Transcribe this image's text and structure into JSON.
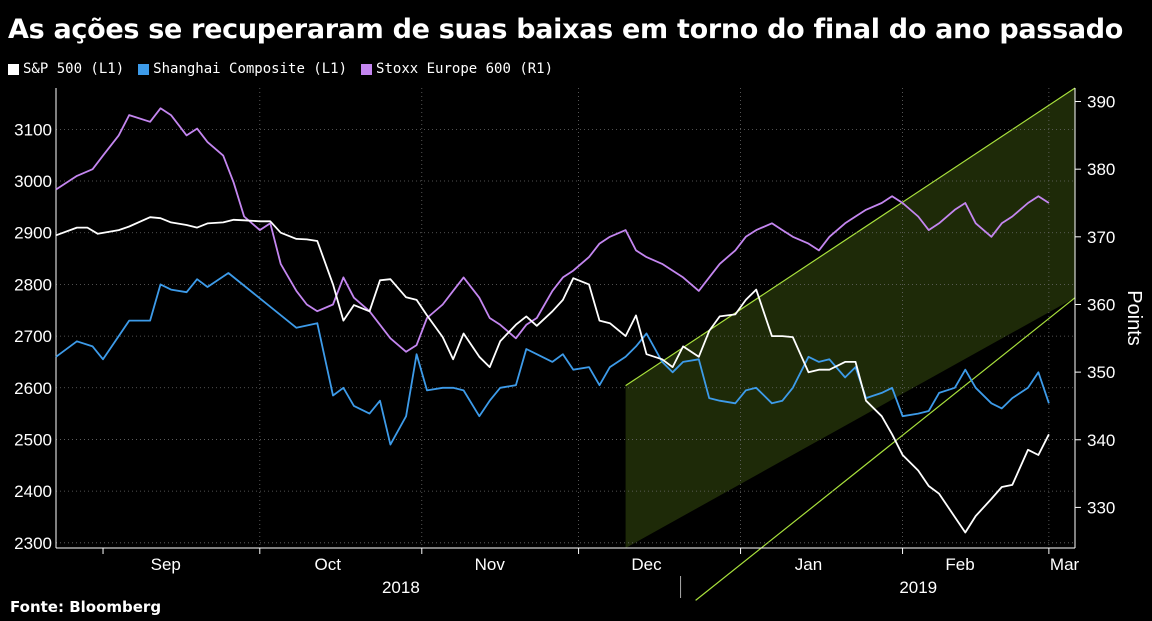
{
  "title": "As ações se recuperaram de suas baixas em torno do final do ano passado",
  "source_label": "Fonte:",
  "source_name": "Bloomberg",
  "colors": {
    "sp500": "#ffffff",
    "shanghai": "#3d9be9",
    "stoxx": "#c486f0",
    "channel_fill": "#1e2a08",
    "channel_line": "#a8e03c"
  },
  "legend": [
    {
      "label": "S&P 500 (L1)",
      "color": "#ffffff"
    },
    {
      "label": "Shanghai Composite (L1)",
      "color": "#3d9be9"
    },
    {
      "label": "Stoxx Europe 600 (R1)",
      "color": "#c486f0"
    }
  ],
  "chart_data": {
    "type": "line",
    "x_type": "date",
    "xlim": [
      "2018-08-23",
      "2019-03-06"
    ],
    "x_month_labels": [
      "Sep",
      "Oct",
      "Nov",
      "Dec",
      "Jan",
      "Feb",
      "Mar"
    ],
    "x_year_labels": [
      "2018",
      "2019"
    ],
    "y_left": {
      "ylim": [
        2290,
        3180
      ],
      "ticks": [
        2300,
        2400,
        2500,
        2600,
        2700,
        2800,
        2900,
        3000,
        3100
      ]
    },
    "y_right": {
      "ylim": [
        324,
        392
      ],
      "ticks": [
        330,
        340,
        350,
        360,
        370,
        380,
        390
      ],
      "label": "Points"
    },
    "trend_channel": {
      "x_start": "2018-12-10",
      "x_end": "2019-03-06",
      "upper": [
        348,
        392
      ],
      "lower": [
        308,
        361
      ],
      "axis": "right"
    },
    "series": [
      {
        "name": "S&P 500 (L1)",
        "axis": "left",
        "points": [
          [
            "2018-08-23",
            2895
          ],
          [
            "2018-08-27",
            2910
          ],
          [
            "2018-08-29",
            2910
          ],
          [
            "2018-08-31",
            2898
          ],
          [
            "2018-09-04",
            2905
          ],
          [
            "2018-09-06",
            2912
          ],
          [
            "2018-09-10",
            2930
          ],
          [
            "2018-09-12",
            2928
          ],
          [
            "2018-09-14",
            2920
          ],
          [
            "2018-09-17",
            2915
          ],
          [
            "2018-09-19",
            2910
          ],
          [
            "2018-09-21",
            2918
          ],
          [
            "2018-09-24",
            2920
          ],
          [
            "2018-09-26",
            2925
          ],
          [
            "2018-09-28",
            2924
          ],
          [
            "2018-10-01",
            2922
          ],
          [
            "2018-10-03",
            2922
          ],
          [
            "2018-10-05",
            2900
          ],
          [
            "2018-10-08",
            2888
          ],
          [
            "2018-10-10",
            2887
          ],
          [
            "2018-10-12",
            2884
          ],
          [
            "2018-10-15",
            2800
          ],
          [
            "2018-10-17",
            2730
          ],
          [
            "2018-10-19",
            2760
          ],
          [
            "2018-10-22",
            2748
          ],
          [
            "2018-10-24",
            2808
          ],
          [
            "2018-10-26",
            2810
          ],
          [
            "2018-10-29",
            2775
          ],
          [
            "2018-10-31",
            2770
          ],
          [
            "2018-11-02",
            2740
          ],
          [
            "2018-11-05",
            2698
          ],
          [
            "2018-11-07",
            2655
          ],
          [
            "2018-11-09",
            2705
          ],
          [
            "2018-11-12",
            2660
          ],
          [
            "2018-11-14",
            2640
          ],
          [
            "2018-11-16",
            2690
          ],
          [
            "2018-11-19",
            2722
          ],
          [
            "2018-11-21",
            2738
          ],
          [
            "2018-11-23",
            2720
          ],
          [
            "2018-11-26",
            2748
          ],
          [
            "2018-11-28",
            2770
          ],
          [
            "2018-11-30",
            2812
          ],
          [
            "2018-12-03",
            2800
          ],
          [
            "2018-12-05",
            2730
          ],
          [
            "2018-12-07",
            2725
          ],
          [
            "2018-12-10",
            2700
          ],
          [
            "2018-12-12",
            2740
          ],
          [
            "2018-12-14",
            2665
          ],
          [
            "2018-12-17",
            2655
          ],
          [
            "2018-12-19",
            2640
          ],
          [
            "2018-12-21",
            2680
          ],
          [
            "2018-12-24",
            2660
          ],
          [
            "2018-12-26",
            2710
          ],
          [
            "2018-12-28",
            2738
          ],
          [
            "2018-12-31",
            2742
          ],
          [
            "2019-01-02",
            2770
          ],
          [
            "2019-01-04",
            2790
          ],
          [
            "2019-01-07",
            2700
          ],
          [
            "2019-01-09",
            2700
          ],
          [
            "2019-01-11",
            2698
          ],
          [
            "2019-01-14",
            2630
          ],
          [
            "2019-01-16",
            2635
          ],
          [
            "2019-01-18",
            2635
          ],
          [
            "2019-01-21",
            2650
          ],
          [
            "2019-01-23",
            2650
          ],
          [
            "2019-01-25",
            2575
          ],
          [
            "2019-01-28",
            2545
          ],
          [
            "2019-01-30",
            2510
          ],
          [
            "2019-02-01",
            2470
          ],
          [
            "2019-02-04",
            2440
          ],
          [
            "2019-02-06",
            2410
          ],
          [
            "2019-02-08",
            2395
          ],
          [
            "2019-02-11",
            2350
          ],
          [
            "2019-02-13",
            2320
          ],
          [
            "2019-02-15",
            2352
          ],
          [
            "2019-02-18",
            2385
          ],
          [
            "2019-02-20",
            2408
          ],
          [
            "2019-02-22",
            2412
          ],
          [
            "2019-02-25",
            2480
          ],
          [
            "2019-02-27",
            2470
          ],
          [
            "2019-03-01",
            2510
          ]
        ]
      },
      {
        "name": "Shanghai Composite (L1)",
        "axis": "left",
        "points": [
          [
            "2018-08-23",
            2660
          ],
          [
            "2018-08-27",
            2690
          ],
          [
            "2018-08-30",
            2680
          ],
          [
            "2018-09-01",
            2655
          ],
          [
            "2018-09-04",
            2700
          ],
          [
            "2018-09-06",
            2730
          ],
          [
            "2018-09-10",
            2730
          ],
          [
            "2018-09-12",
            2800
          ],
          [
            "2018-09-14",
            2790
          ],
          [
            "2018-09-17",
            2785
          ],
          [
            "2018-09-19",
            2810
          ],
          [
            "2018-09-21",
            2795
          ],
          [
            "2018-09-25",
            2822
          ],
          [
            "2018-10-08",
            2716
          ],
          [
            "2018-10-12",
            2725
          ],
          [
            "2018-10-15",
            2585
          ],
          [
            "2018-10-17",
            2600
          ],
          [
            "2018-10-19",
            2565
          ],
          [
            "2018-10-22",
            2550
          ],
          [
            "2018-10-24",
            2575
          ],
          [
            "2018-10-26",
            2490
          ],
          [
            "2018-10-29",
            2545
          ],
          [
            "2018-10-31",
            2665
          ],
          [
            "2018-11-02",
            2595
          ],
          [
            "2018-11-05",
            2600
          ],
          [
            "2018-11-07",
            2600
          ],
          [
            "2018-11-09",
            2595
          ],
          [
            "2018-11-12",
            2545
          ],
          [
            "2018-11-14",
            2575
          ],
          [
            "2018-11-16",
            2600
          ],
          [
            "2018-11-19",
            2605
          ],
          [
            "2018-11-21",
            2675
          ],
          [
            "2018-11-23",
            2665
          ],
          [
            "2018-11-26",
            2650
          ],
          [
            "2018-11-28",
            2665
          ],
          [
            "2018-11-30",
            2635
          ],
          [
            "2018-12-03",
            2640
          ],
          [
            "2018-12-05",
            2605
          ],
          [
            "2018-12-07",
            2640
          ],
          [
            "2018-12-10",
            2660
          ],
          [
            "2018-12-12",
            2680
          ],
          [
            "2018-12-14",
            2705
          ],
          [
            "2018-12-17",
            2650
          ],
          [
            "2018-12-19",
            2630
          ],
          [
            "2018-12-21",
            2650
          ],
          [
            "2018-12-24",
            2655
          ],
          [
            "2018-12-26",
            2580
          ],
          [
            "2018-12-28",
            2575
          ],
          [
            "2018-12-31",
            2570
          ],
          [
            "2019-01-02",
            2595
          ],
          [
            "2019-01-04",
            2600
          ],
          [
            "2019-01-07",
            2570
          ],
          [
            "2019-01-09",
            2575
          ],
          [
            "2019-01-11",
            2600
          ],
          [
            "2019-01-14",
            2660
          ],
          [
            "2019-01-16",
            2650
          ],
          [
            "2019-01-18",
            2655
          ],
          [
            "2019-01-21",
            2620
          ],
          [
            "2019-01-23",
            2640
          ],
          [
            "2019-01-25",
            2580
          ],
          [
            "2019-01-28",
            2590
          ],
          [
            "2019-01-30",
            2600
          ],
          [
            "2019-02-01",
            2545
          ],
          [
            "2019-02-04",
            2550
          ],
          [
            "2019-02-06",
            2555
          ],
          [
            "2019-02-08",
            2590
          ],
          [
            "2019-02-11",
            2600
          ],
          [
            "2019-02-13",
            2635
          ],
          [
            "2019-02-15",
            2600
          ],
          [
            "2019-02-18",
            2570
          ],
          [
            "2019-02-20",
            2560
          ],
          [
            "2019-02-22",
            2580
          ],
          [
            "2019-02-25",
            2600
          ],
          [
            "2019-02-27",
            2630
          ],
          [
            "2019-03-01",
            2570
          ]
        ]
      },
      {
        "name": "Stoxx Europe 600 (R1)",
        "axis": "right",
        "points": [
          [
            "2018-08-23",
            377
          ],
          [
            "2018-08-27",
            379
          ],
          [
            "2018-08-30",
            380
          ],
          [
            "2018-09-01",
            382
          ],
          [
            "2018-09-04",
            385
          ],
          [
            "2018-09-06",
            388
          ],
          [
            "2018-09-10",
            387
          ],
          [
            "2018-09-12",
            389
          ],
          [
            "2018-09-14",
            388
          ],
          [
            "2018-09-17",
            385
          ],
          [
            "2018-09-19",
            386
          ],
          [
            "2018-09-21",
            384
          ],
          [
            "2018-09-24",
            382
          ],
          [
            "2018-09-26",
            378
          ],
          [
            "2018-09-28",
            373
          ],
          [
            "2018-10-01",
            371
          ],
          [
            "2018-10-03",
            372
          ],
          [
            "2018-10-05",
            366
          ],
          [
            "2018-10-08",
            362
          ],
          [
            "2018-10-10",
            360
          ],
          [
            "2018-10-12",
            359
          ],
          [
            "2018-10-15",
            360
          ],
          [
            "2018-10-17",
            364
          ],
          [
            "2018-10-19",
            361
          ],
          [
            "2018-10-22",
            359
          ],
          [
            "2018-10-24",
            357
          ],
          [
            "2018-10-26",
            355
          ],
          [
            "2018-10-29",
            353
          ],
          [
            "2018-10-31",
            354
          ],
          [
            "2018-11-02",
            358
          ],
          [
            "2018-11-05",
            360
          ],
          [
            "2018-11-07",
            362
          ],
          [
            "2018-11-09",
            364
          ],
          [
            "2018-11-12",
            361
          ],
          [
            "2018-11-14",
            358
          ],
          [
            "2018-11-16",
            357
          ],
          [
            "2018-11-19",
            355
          ],
          [
            "2018-11-21",
            357
          ],
          [
            "2018-11-23",
            358
          ],
          [
            "2018-11-26",
            362
          ],
          [
            "2018-11-28",
            364
          ],
          [
            "2018-11-30",
            365
          ],
          [
            "2018-12-03",
            367
          ],
          [
            "2018-12-05",
            369
          ],
          [
            "2018-12-07",
            370
          ],
          [
            "2018-12-10",
            371
          ],
          [
            "2018-12-12",
            368
          ],
          [
            "2018-12-14",
            367
          ],
          [
            "2018-12-17",
            366
          ],
          [
            "2018-12-19",
            365
          ],
          [
            "2018-12-21",
            364
          ],
          [
            "2018-12-24",
            362
          ],
          [
            "2018-12-26",
            364
          ],
          [
            "2018-12-28",
            366
          ],
          [
            "2018-12-31",
            368
          ],
          [
            "2019-01-02",
            370
          ],
          [
            "2019-01-04",
            371
          ],
          [
            "2019-01-07",
            372
          ],
          [
            "2019-01-09",
            371
          ],
          [
            "2019-01-11",
            370
          ],
          [
            "2019-01-14",
            369
          ],
          [
            "2019-01-16",
            368
          ],
          [
            "2019-01-18",
            370
          ],
          [
            "2019-01-21",
            372
          ],
          [
            "2019-01-23",
            373
          ],
          [
            "2019-01-25",
            374
          ],
          [
            "2019-01-28",
            375
          ],
          [
            "2019-01-30",
            376
          ],
          [
            "2019-02-01",
            375
          ],
          [
            "2019-02-04",
            373
          ],
          [
            "2019-02-06",
            371
          ],
          [
            "2019-02-08",
            372
          ],
          [
            "2019-02-11",
            374
          ],
          [
            "2019-02-13",
            375
          ],
          [
            "2019-02-15",
            372
          ],
          [
            "2019-02-18",
            370
          ],
          [
            "2019-02-20",
            372
          ],
          [
            "2019-02-22",
            373
          ],
          [
            "2019-02-25",
            375
          ],
          [
            "2019-02-27",
            376
          ],
          [
            "2019-03-01",
            375
          ]
        ]
      }
    ]
  }
}
